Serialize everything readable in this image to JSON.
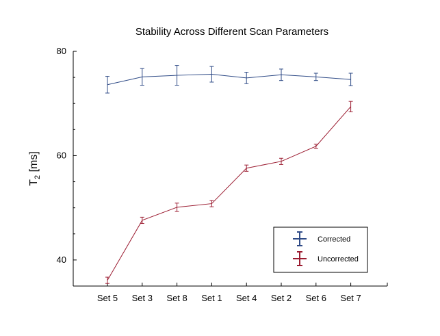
{
  "chart_data": {
    "type": "line",
    "title": "Stability Across Different Scan Parameters",
    "ylabel": "T",
    "ylabel_sub": "2",
    "ylabel_unit": " [ms]",
    "xlabel": "",
    "categories": [
      "Set 5",
      "Set 3",
      "Set 8",
      "Set 1",
      "Set 4",
      "Set 2",
      "Set 6",
      "Set 7"
    ],
    "ylim": [
      35,
      80
    ],
    "yticks": [
      40,
      60,
      80
    ],
    "grid": false,
    "legend_position": "bottom-right",
    "error_bars": true,
    "series": [
      {
        "name": "Corrected",
        "color": "#2e4a86",
        "values": [
          73.6,
          75.1,
          75.4,
          75.6,
          74.9,
          75.5,
          75.1,
          74.6
        ],
        "errors": [
          1.6,
          1.6,
          1.9,
          1.5,
          1.1,
          1.1,
          0.7,
          1.2
        ]
      },
      {
        "name": "Uncorrected",
        "color": "#9b1b30",
        "values": [
          36.1,
          47.6,
          50.1,
          50.8,
          57.6,
          58.9,
          61.8,
          69.4
        ],
        "errors": [
          0.6,
          0.6,
          0.8,
          0.6,
          0.6,
          0.6,
          0.4,
          1.0
        ]
      }
    ]
  }
}
